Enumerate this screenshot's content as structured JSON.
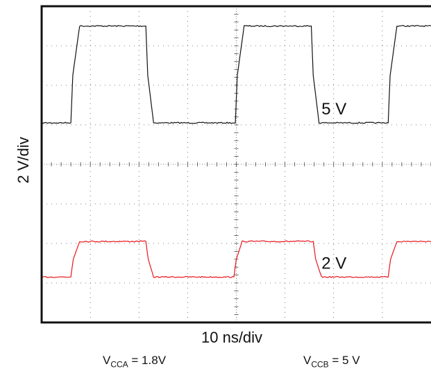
{
  "chart_data": {
    "type": "line",
    "title": "",
    "xlabel": "10 ns/div",
    "ylabel": "2 V/div",
    "x_unit": "ns",
    "xlim": [
      0,
      80
    ],
    "ylim": [
      -8,
      8
    ],
    "grid": true,
    "series": [
      {
        "name": "5 V",
        "color": "#111111",
        "low": 2.1,
        "high": 7.0,
        "x": [
          0,
          6.0,
          6.4,
          7.8,
          21.4,
          21.8,
          23.0,
          39.8,
          40.2,
          41.6,
          55.4,
          55.8,
          57.0,
          71.2,
          71.6,
          73.0,
          80
        ],
        "y": [
          2.1,
          2.1,
          4.5,
          7.0,
          7.0,
          4.5,
          2.1,
          2.1,
          4.5,
          7.0,
          7.0,
          4.5,
          2.1,
          2.1,
          4.5,
          7.0,
          7.0
        ]
      },
      {
        "name": "2 V",
        "color": "#e8161b",
        "low": -5.7,
        "high": -3.9,
        "x": [
          0,
          6.0,
          6.5,
          7.8,
          21.4,
          21.9,
          23.0,
          39.5,
          40.0,
          41.2,
          55.8,
          56.3,
          57.5,
          71.2,
          71.7,
          73.0,
          80
        ],
        "y": [
          -5.7,
          -5.7,
          -4.8,
          -3.9,
          -3.9,
          -4.8,
          -5.7,
          -5.7,
          -4.8,
          -3.9,
          -3.9,
          -4.8,
          -5.7,
          -5.7,
          -4.8,
          -3.9,
          -3.9
        ]
      }
    ]
  },
  "conditions": {
    "vcca_main": "V",
    "vcca_sub": "CCA",
    "vcca_value": " = 1.8V",
    "vccb_main": "V",
    "vccb_sub": "CCB",
    "vccb_value": " = 5 V"
  }
}
